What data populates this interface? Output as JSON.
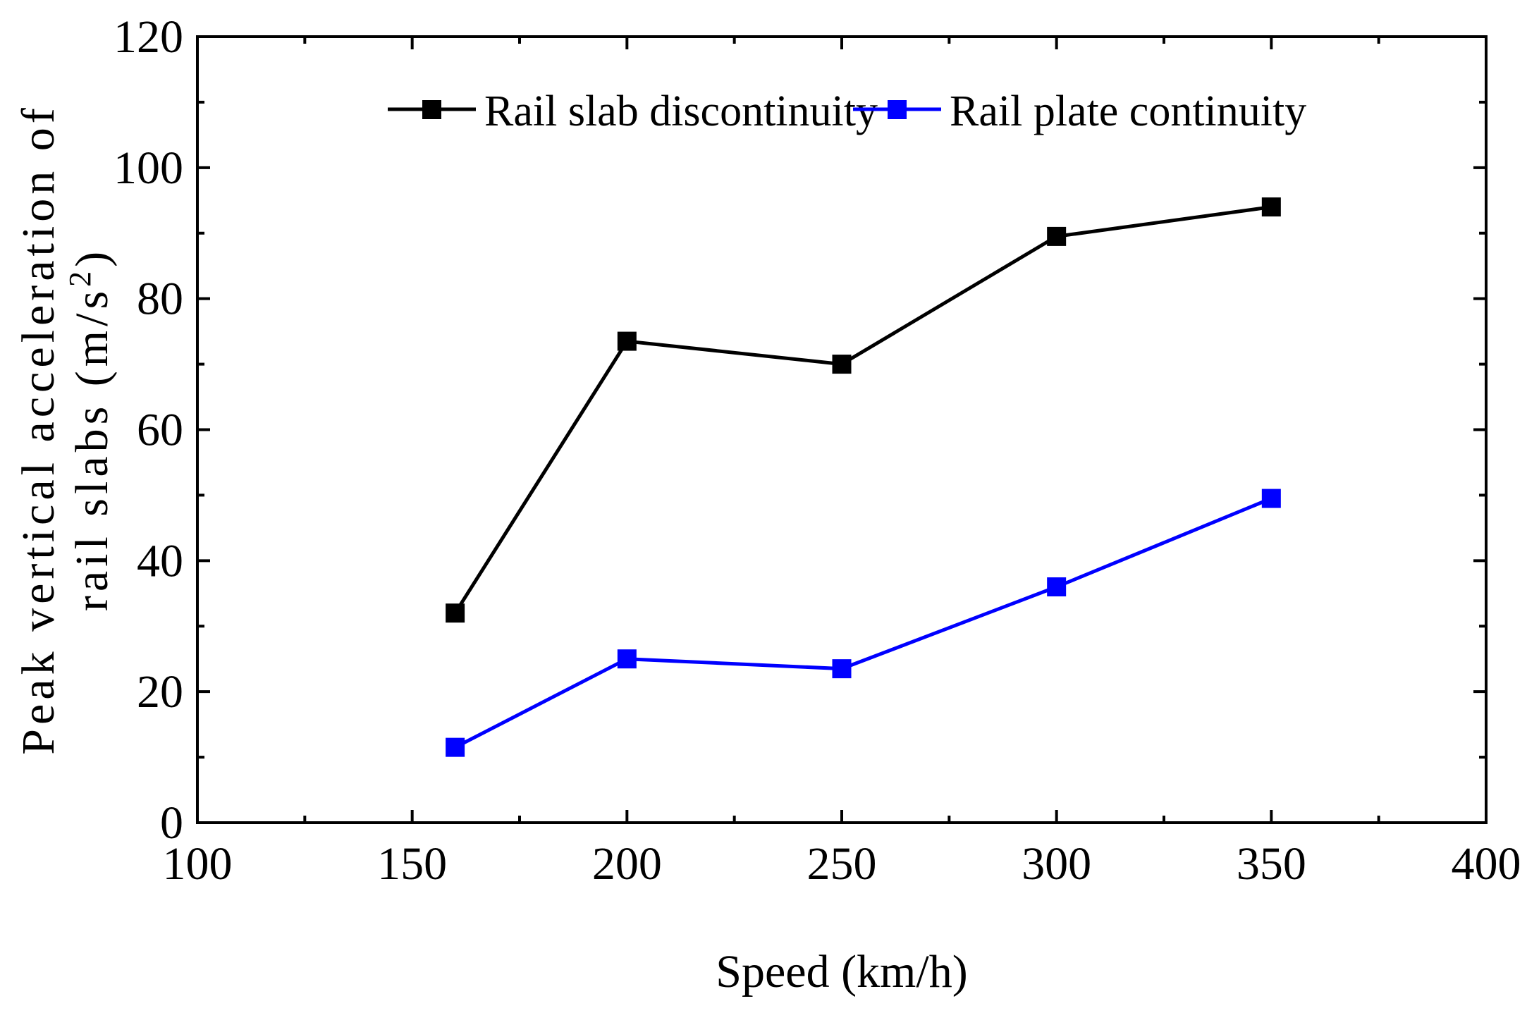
{
  "chart_data": {
    "type": "line",
    "title": "",
    "xlabel": "Speed (km/h)",
    "ylabel_line1": "Peak vertical acceleration of",
    "ylabel_line2_prefix": "rail slabs (m/s",
    "ylabel_superscript": "2",
    "ylabel_suffix": ")",
    "xlim": [
      100,
      400
    ],
    "ylim": [
      0,
      120
    ],
    "xticks": [
      100,
      150,
      200,
      250,
      300,
      350,
      400
    ],
    "yticks": [
      0,
      20,
      40,
      60,
      80,
      100,
      120
    ],
    "x": [
      160,
      200,
      250,
      300,
      350
    ],
    "series": [
      {
        "name": "Rail slab discontinuity",
        "color": "#000000",
        "values": [
          32,
          73.5,
          70,
          89.5,
          94
        ]
      },
      {
        "name": "Rail plate continuity",
        "color": "#0000ff",
        "values": [
          11.5,
          25,
          23.5,
          36,
          49.5
        ]
      }
    ],
    "legend_position": "top-center",
    "grid": false
  }
}
